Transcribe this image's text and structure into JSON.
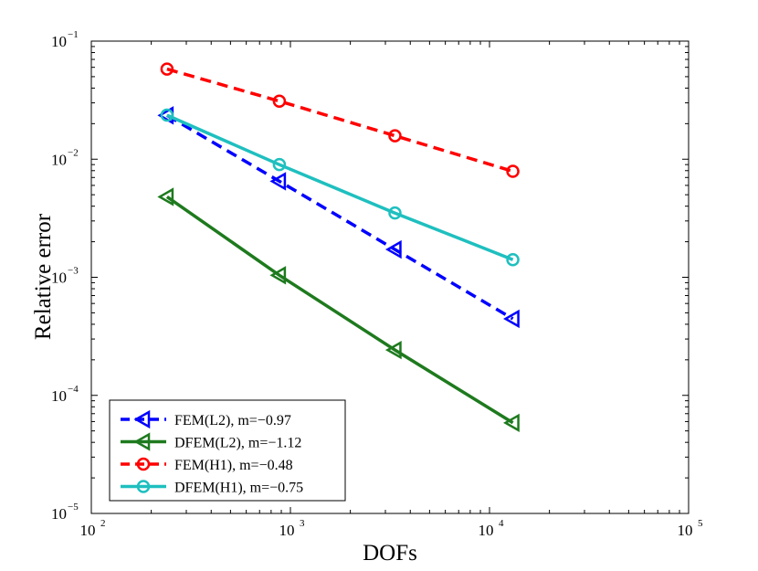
{
  "chart_data": {
    "type": "line",
    "title": "",
    "xlabel": "DOFs",
    "ylabel": "Relative error",
    "xscale": "log",
    "yscale": "log",
    "xlim": [
      100,
      100000
    ],
    "ylim": [
      1e-05,
      0.1
    ],
    "grid": false,
    "legend_position": "bottom-left",
    "x_ticks": [
      {
        "value": 100,
        "base": "10",
        "exp": "2"
      },
      {
        "value": 1000,
        "base": "10",
        "exp": "3"
      },
      {
        "value": 10000,
        "base": "10",
        "exp": "4"
      },
      {
        "value": 100000,
        "base": "10",
        "exp": "5"
      }
    ],
    "y_ticks": [
      {
        "value": 1e-05,
        "base": "10",
        "exp": "−5"
      },
      {
        "value": 0.0001,
        "base": "10",
        "exp": "−4"
      },
      {
        "value": 0.001,
        "base": "10",
        "exp": "−3"
      },
      {
        "value": 0.01,
        "base": "10",
        "exp": "−2"
      },
      {
        "value": 0.1,
        "base": "10",
        "exp": "−1"
      }
    ],
    "series": [
      {
        "name": "FEM(L2), m=−0.97",
        "color": "#0000ff",
        "dash": "dashed",
        "marker": "triangle-left",
        "x": [
          240,
          880,
          3350,
          13100
        ],
        "y": [
          0.0235,
          0.0065,
          0.00172,
          0.000445
        ]
      },
      {
        "name": "DFEM(L2), m=−1.12",
        "color": "#1e7a1e",
        "dash": "solid",
        "marker": "triangle-left",
        "x": [
          240,
          880,
          3350,
          13100
        ],
        "y": [
          0.0048,
          0.00104,
          0.000242,
          5.85e-05
        ]
      },
      {
        "name": "FEM(H1), m=−0.48",
        "color": "#ff0000",
        "dash": "dashed",
        "marker": "circle",
        "x": [
          240,
          880,
          3350,
          13100
        ],
        "y": [
          0.058,
          0.031,
          0.0158,
          0.0079
        ]
      },
      {
        "name": "DFEM(H1), m=−0.75",
        "color": "#1fbfbf",
        "dash": "solid",
        "marker": "circle",
        "x": [
          240,
          880,
          3350,
          13100
        ],
        "y": [
          0.0236,
          0.009,
          0.0035,
          0.00141
        ]
      }
    ]
  }
}
